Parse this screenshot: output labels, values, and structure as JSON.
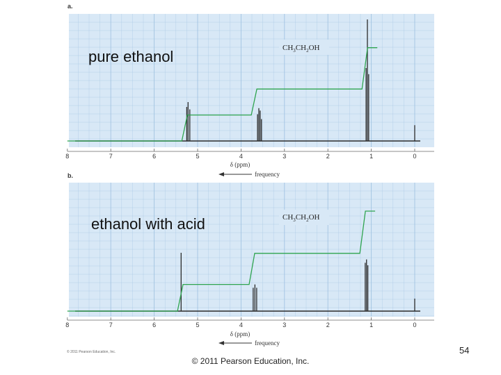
{
  "slide": {
    "footer": "© 2011 Pearson Education, Inc.",
    "page_number": "54",
    "small_copyright": "© 2011 Pearson Education, Inc."
  },
  "colors": {
    "panel_bg": "#d8e8f6",
    "grid": "#9dc0e0",
    "spectrum": "#2a2a2a",
    "integral": "#2ea44f"
  },
  "chart_data": [
    {
      "type": "line",
      "panel_label": "a.",
      "title": "pure ethanol",
      "formula": "CH3CH2OH",
      "formula_parts": [
        "CH",
        "3",
        "CH",
        "2",
        "OH"
      ],
      "xlabel": "δ (ppm)",
      "axis_arrow_label": "frequency",
      "xlim": [
        8,
        0
      ],
      "x_ticks": [
        "8",
        "7",
        "6",
        "5",
        "4",
        "3",
        "2",
        "1",
        "0"
      ],
      "peaks": [
        {
          "ppm": 5.25,
          "height": 0.28
        },
        {
          "ppm": 5.22,
          "height": 0.32
        },
        {
          "ppm": 5.18,
          "height": 0.26
        },
        {
          "ppm": 3.62,
          "height": 0.22
        },
        {
          "ppm": 3.59,
          "height": 0.27
        },
        {
          "ppm": 3.56,
          "height": 0.25
        },
        {
          "ppm": 3.53,
          "height": 0.18
        },
        {
          "ppm": 1.12,
          "height": 0.6
        },
        {
          "ppm": 1.09,
          "height": 1.0
        },
        {
          "ppm": 1.06,
          "height": 0.55
        },
        {
          "ppm": 0.0,
          "height": 0.13
        }
      ],
      "integral": [
        {
          "from": 8.0,
          "level": 0.0
        },
        {
          "from": 5.3,
          "level": 0.22
        },
        {
          "from": 3.7,
          "level": 0.44
        },
        {
          "from": 1.15,
          "level": 0.79
        }
      ]
    },
    {
      "type": "line",
      "panel_label": "b.",
      "title": "ethanol with acid",
      "formula": "CH3CH2OH",
      "formula_parts": [
        "CH",
        "3",
        "CH",
        "2",
        "OH"
      ],
      "xlabel": "δ (ppm)",
      "axis_arrow_label": "frequency",
      "xlim": [
        8,
        0
      ],
      "x_ticks": [
        "8",
        "7",
        "6",
        "5",
        "4",
        "3",
        "2",
        "1",
        "0"
      ],
      "peaks": [
        {
          "ppm": 5.38,
          "height": 0.7
        },
        {
          "ppm": 3.72,
          "height": 0.28
        },
        {
          "ppm": 3.68,
          "height": 0.32
        },
        {
          "ppm": 3.64,
          "height": 0.28
        },
        {
          "ppm": 1.14,
          "height": 0.58
        },
        {
          "ppm": 1.11,
          "height": 0.62
        },
        {
          "ppm": 1.08,
          "height": 0.55
        },
        {
          "ppm": 0.0,
          "height": 0.15
        }
      ],
      "integral": [
        {
          "from": 8.0,
          "level": 0.0
        },
        {
          "from": 5.4,
          "level": 0.24
        },
        {
          "from": 3.75,
          "level": 0.52
        },
        {
          "from": 1.2,
          "level": 0.9
        }
      ]
    }
  ]
}
